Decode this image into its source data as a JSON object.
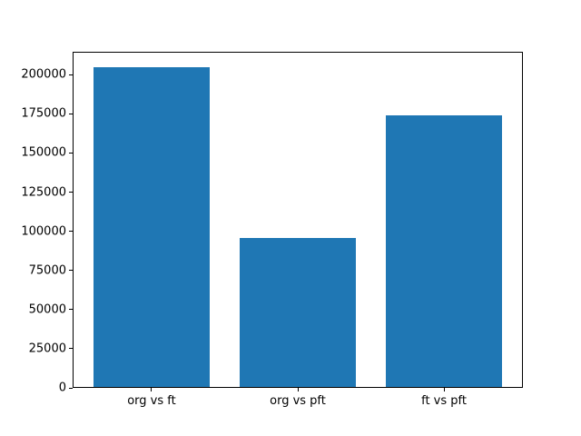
{
  "chart_data": {
    "type": "bar",
    "title": "",
    "xlabel": "",
    "ylabel": "",
    "categories": [
      "org vs ft",
      "org vs pft",
      "ft vs pft"
    ],
    "values": [
      204500,
      95200,
      173300
    ],
    "bar_centers": [
      0,
      1,
      2
    ],
    "bar_width": 0.8,
    "xlim": [
      -0.54,
      2.54
    ],
    "ylim": [
      0,
      214700
    ],
    "ytick_values": [
      0,
      25000,
      50000,
      75000,
      100000,
      125000,
      150000,
      175000,
      200000
    ],
    "ytick_labels": [
      "0",
      "25000",
      "50000",
      "75000",
      "100000",
      "125000",
      "150000",
      "175000",
      "200000"
    ],
    "grid": false,
    "legend": null,
    "bar_color": "#1f77b4",
    "frame_color": "#000000",
    "background_color": "#ffffff"
  }
}
